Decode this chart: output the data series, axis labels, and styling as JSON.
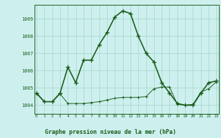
{
  "title": "Graphe pression niveau de la mer (hPa)",
  "background_color": "#cdf0ee",
  "grid_color": "#a8d8ce",
  "line_color": "#1a5c1a",
  "x_values": [
    0,
    1,
    2,
    3,
    4,
    5,
    6,
    7,
    8,
    9,
    10,
    11,
    12,
    13,
    14,
    15,
    16,
    17,
    18,
    19,
    20,
    21,
    22,
    23
  ],
  "series1": [
    1004.7,
    1004.2,
    1004.2,
    1004.7,
    1006.2,
    1005.3,
    1006.6,
    1006.6,
    1007.5,
    1008.2,
    1009.1,
    1009.45,
    1009.3,
    1008.0,
    1007.0,
    1006.5,
    1005.3,
    1004.7,
    1004.1,
    1004.0,
    1004.0,
    1004.7,
    1005.3,
    1005.4
  ],
  "series2": [
    1004.65,
    1004.2,
    1004.2,
    1004.65,
    1004.1,
    1004.1,
    1004.1,
    1004.15,
    1004.2,
    1004.3,
    1004.4,
    1004.45,
    1004.45,
    1004.45,
    1004.5,
    1004.95,
    1005.05,
    1005.05,
    1004.05,
    1004.0,
    1004.05,
    1004.75,
    1004.95,
    1005.35
  ],
  "ylim_min": 1003.5,
  "ylim_max": 1009.8,
  "ytick_values": [
    1004,
    1005,
    1006,
    1007,
    1008,
    1009
  ],
  "xlim_min": -0.3,
  "xlim_max": 23.3
}
